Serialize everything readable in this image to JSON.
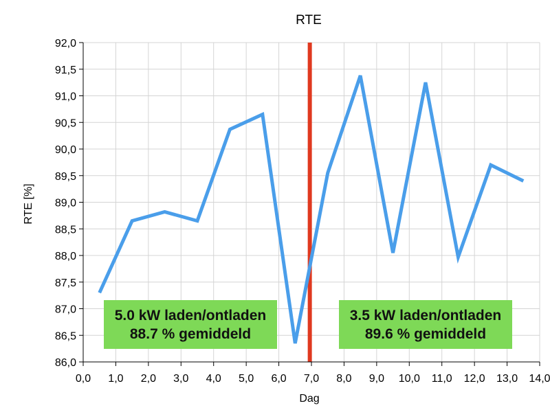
{
  "chart_data": {
    "type": "line",
    "title": "RTE",
    "xlabel": "Dag",
    "ylabel": "RTE [%]",
    "xlim": [
      0,
      14
    ],
    "ylim": [
      86,
      92
    ],
    "x_ticks": [
      "0,0",
      "1,0",
      "2,0",
      "3,0",
      "4,0",
      "5,0",
      "6,0",
      "7,0",
      "8,0",
      "9,0",
      "10,0",
      "11,0",
      "12,0",
      "13,0",
      "14,0"
    ],
    "y_ticks": [
      "86,0",
      "86,5",
      "87,0",
      "87,5",
      "88,0",
      "88,5",
      "89,0",
      "89,5",
      "90,0",
      "90,5",
      "91,0",
      "91,5",
      "92,0"
    ],
    "grid": true,
    "series": [
      {
        "color": "#4a9eea",
        "x": [
          0.5,
          1.5,
          2.5,
          3.5,
          4.5,
          5.5,
          6.5,
          7.5,
          8.5,
          9.5,
          10.5,
          11.5,
          12.5,
          13.5
        ],
        "y": [
          87.3,
          88.65,
          88.82,
          88.65,
          90.37,
          90.65,
          86.35,
          89.55,
          91.38,
          88.05,
          91.25,
          87.97,
          89.7,
          89.4
        ]
      }
    ],
    "vertical_line": {
      "x": 6.95,
      "color": "#e0391f"
    },
    "annotations": [
      {
        "lines": [
          "5.0 kW laden/ontladen",
          "88.7 % gemiddeld"
        ],
        "bg": "#7ed957"
      },
      {
        "lines": [
          "3.5 kW laden/ontladen",
          "89.6 % gemiddeld"
        ],
        "bg": "#7ed957"
      }
    ]
  }
}
